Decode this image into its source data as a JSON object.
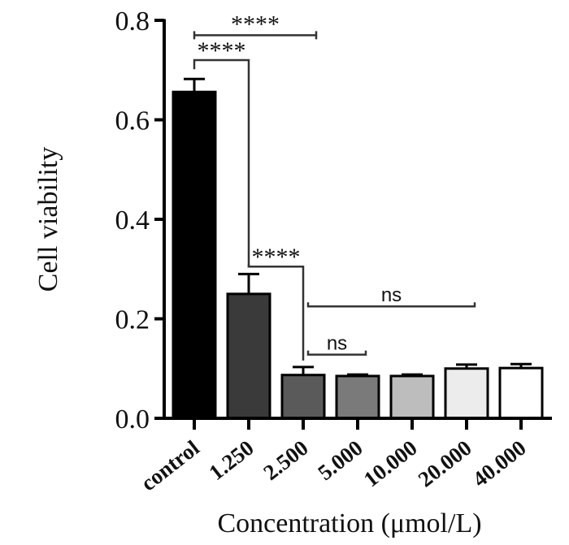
{
  "chart_data": {
    "type": "bar",
    "title": "",
    "xlabel": "Concentration (μmol/L)",
    "ylabel": "Cell viability",
    "ylim": [
      0,
      0.8
    ],
    "yticks": [
      0.0,
      0.2,
      0.4,
      0.6,
      0.8
    ],
    "ytick_labels": [
      "0.0",
      "0.2",
      "0.4",
      "0.6",
      "0.8"
    ],
    "categories": [
      "control",
      "1.250",
      "2.500",
      "5.000",
      "10.000",
      "20.000",
      "40.000"
    ],
    "values": [
      0.656,
      0.25,
      0.087,
      0.085,
      0.085,
      0.1,
      0.101
    ],
    "error": [
      0.026,
      0.04,
      0.016,
      0.003,
      0.003,
      0.008,
      0.008
    ],
    "colors": [
      "#000000",
      "#3a3a3a",
      "#5a5a5a",
      "#7a7a7a",
      "#bdbdbd",
      "#ececec",
      "#ffffff"
    ],
    "grid": false,
    "legend": "none",
    "annotations": [
      {
        "from": "control",
        "to": "2.500",
        "label": "****",
        "level": 0.77,
        "style": "flat"
      },
      {
        "from": "control",
        "to": "1.250",
        "label": "****",
        "level": 0.72,
        "style": "bracket"
      },
      {
        "from": "1.250",
        "to": "2.500",
        "label": "****",
        "level": 0.305,
        "style": "bracket"
      },
      {
        "from": "2.500",
        "to": "20.000",
        "label": "ns",
        "level": 0.225,
        "style": "bracket-up"
      },
      {
        "from": "2.500",
        "to": "5.000",
        "label": "ns",
        "level": 0.128,
        "style": "bracket-up"
      }
    ]
  }
}
